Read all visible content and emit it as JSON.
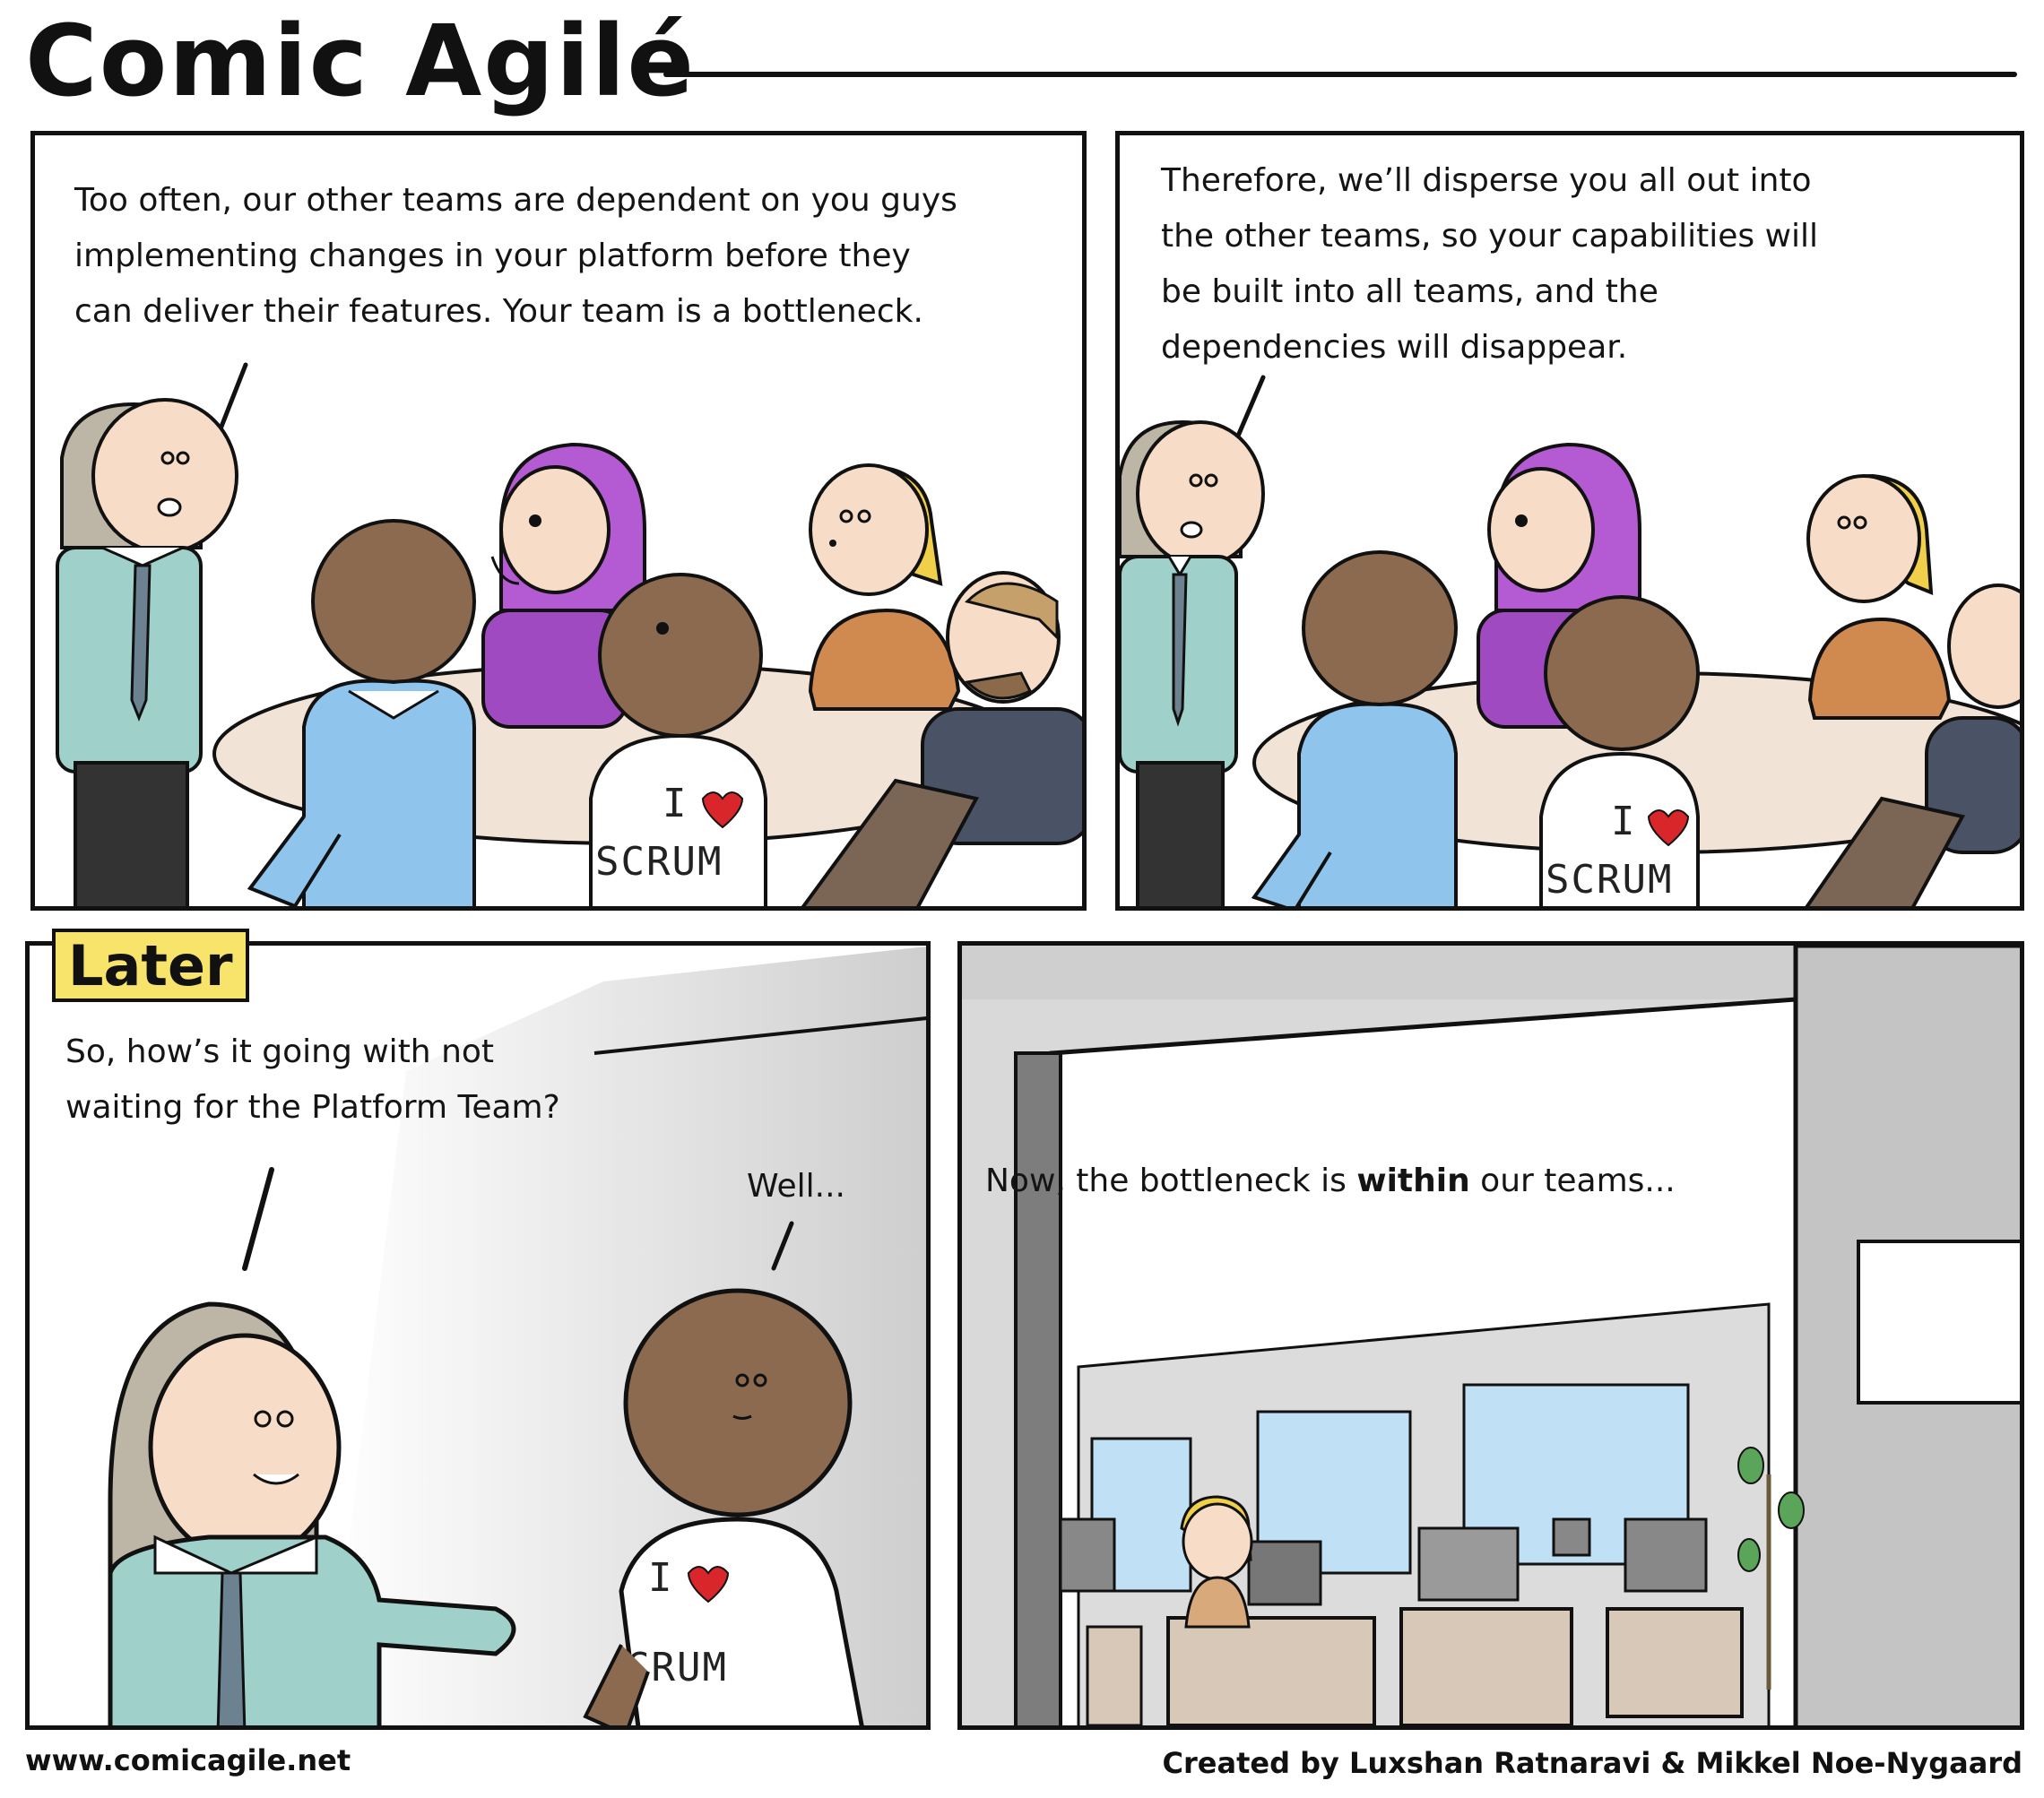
{
  "header": {
    "title": "Comic Agilé"
  },
  "panels": [
    {
      "speech_lines": [
        "Too often, our other teams are dependent on you guys",
        "implementing changes in your platform before they",
        "can deliver their features. Your team is a bottleneck."
      ],
      "shirt_text": [
        "I",
        "SCRUM"
      ]
    },
    {
      "speech_lines": [
        "Therefore, we’ll disperse you all out into",
        "the other teams, so your capabilities will",
        "be built into all teams, and the",
        "dependencies will disappear."
      ],
      "shirt_text": [
        "I",
        "SCRUM"
      ]
    },
    {
      "caption": "Later",
      "speech_lines": [
        "So, how’s it going with not",
        "waiting for the Platform Team?"
      ],
      "reply": "Well...",
      "shirt_text": [
        "I",
        "CRUM"
      ]
    },
    {
      "speech_prefix": "Now, the bottleneck is ",
      "speech_emphasis": "within",
      "speech_suffix": " our teams..."
    }
  ],
  "footer": {
    "website": "www.comicagile.net",
    "credits": "Created by Luxshan Ratnaravi & Mikkel Noe-Nygaard"
  },
  "colors": {
    "teal_shirt": "#9fd0c9",
    "blue_shirt": "#8fc4ec",
    "purple": "#b45ad2",
    "orange_shirt": "#d08a50",
    "navy_jacket": "#4a5266",
    "table": "#f1e3d6",
    "skin": "#f7dcc7",
    "dark_skin": "#8b6a50",
    "blonde": "#f0cf4a",
    "caption_yellow": "#f8e46a",
    "wall_grey": "#d9d9d9"
  }
}
